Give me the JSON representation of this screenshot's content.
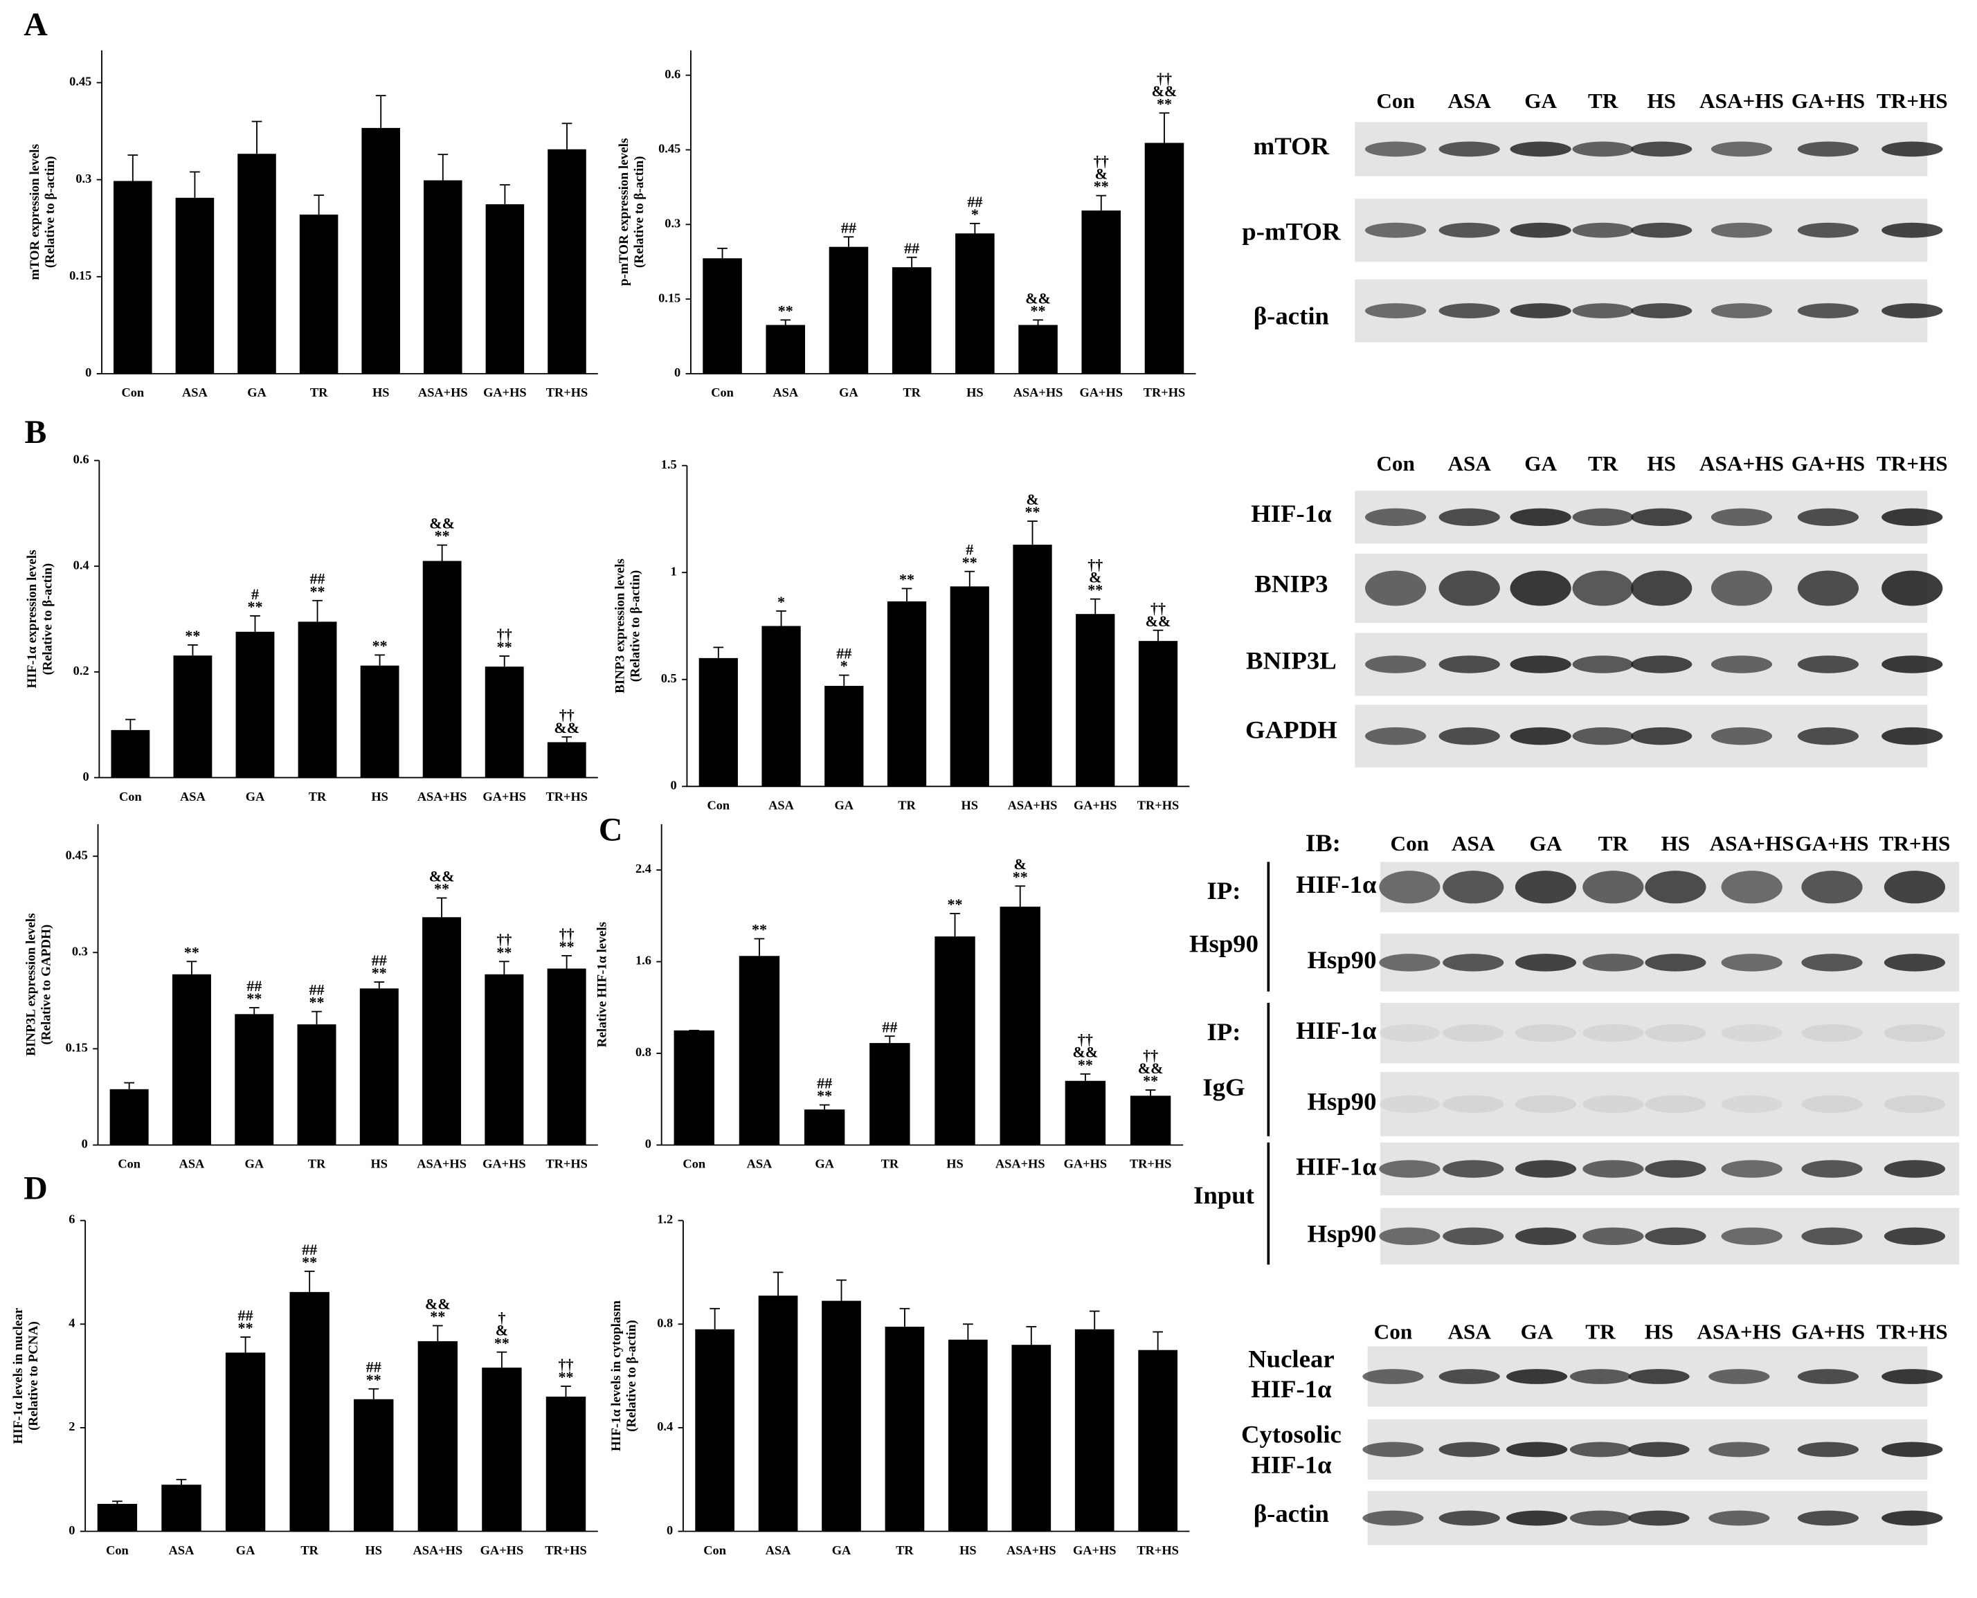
{
  "panel_labels": [
    "A",
    "B",
    "C",
    "D"
  ],
  "chart_data": [
    {
      "type": "bar",
      "ylabel": [
        "mTOR expression levels",
        "(Relative to β-actin)"
      ],
      "categories": [
        "Con",
        "ASA",
        "GA",
        "TR",
        "HS",
        "ASA+HS",
        "GA+HS",
        "TR+HS"
      ],
      "values": [
        0.298,
        0.272,
        0.34,
        0.246,
        0.38,
        0.299,
        0.262,
        0.347
      ],
      "errors": [
        0.04,
        0.04,
        0.05,
        0.03,
        0.05,
        0.04,
        0.03,
        0.04
      ],
      "annotations": [
        [],
        [],
        [],
        [],
        [],
        [],
        [],
        []
      ],
      "color": "#000000",
      "ylim": [
        0,
        0.5
      ],
      "yticks": [
        0,
        0.15,
        0.3,
        0.45
      ]
    },
    {
      "type": "bar",
      "ylabel": [
        "p-mTOR expression levels",
        "(Relative to β-actin)"
      ],
      "categories": [
        "Con",
        "ASA",
        "GA",
        "TR",
        "HS",
        "ASA+HS",
        "GA+HS",
        "TR+HS"
      ],
      "values": [
        0.232,
        0.098,
        0.255,
        0.214,
        0.282,
        0.098,
        0.328,
        0.464
      ],
      "errors": [
        0.02,
        0.01,
        0.02,
        0.02,
        0.02,
        0.01,
        0.03,
        0.06
      ],
      "annotations": [
        [],
        [
          "**"
        ],
        [
          "##"
        ],
        [
          "##"
        ],
        [
          "##",
          "*"
        ],
        [
          "&&",
          "**"
        ],
        [
          "††",
          "&",
          "**"
        ],
        [
          "††",
          "&&",
          "**"
        ]
      ],
      "color": "#000000",
      "ylim": [
        0,
        0.65
      ],
      "yticks": [
        0,
        0.15,
        0.3,
        0.45,
        0.6
      ]
    },
    {
      "type": "bar",
      "ylabel": [
        "HIF-1α expression levels",
        "(Relative to β-actin)"
      ],
      "categories": [
        "Con",
        "ASA",
        "GA",
        "TR",
        "HS",
        "ASA+HS",
        "GA+HS",
        "TR+HS"
      ],
      "values": [
        0.09,
        0.231,
        0.276,
        0.295,
        0.212,
        0.41,
        0.21,
        0.067
      ],
      "errors": [
        0.02,
        0.02,
        0.03,
        0.04,
        0.02,
        0.03,
        0.02,
        0.01
      ],
      "annotations": [
        [],
        [
          "**"
        ],
        [
          "#",
          "**"
        ],
        [
          "##",
          "**"
        ],
        [
          "**"
        ],
        [
          "&&",
          "**"
        ],
        [
          "††",
          "**"
        ],
        [
          "††",
          "&&"
        ]
      ],
      "color": "#000000",
      "ylim": [
        0,
        0.6
      ],
      "yticks": [
        0,
        0.2,
        0.4,
        0.6
      ]
    },
    {
      "type": "bar",
      "ylabel": [
        "BINP3 expression levels",
        "(Relative to β-actin)"
      ],
      "categories": [
        "Con",
        "ASA",
        "GA",
        "TR",
        "HS",
        "ASA+HS",
        "GA+HS",
        "TR+HS"
      ],
      "values": [
        0.6,
        0.75,
        0.47,
        0.865,
        0.935,
        1.13,
        0.806,
        0.68
      ],
      "errors": [
        0.05,
        0.07,
        0.05,
        0.06,
        0.07,
        0.11,
        0.07,
        0.05
      ],
      "annotations": [
        [],
        [
          "*"
        ],
        [
          "##",
          "*"
        ],
        [
          "**"
        ],
        [
          "#",
          "**"
        ],
        [
          "&",
          "**"
        ],
        [
          "††",
          "&",
          "**"
        ],
        [
          "††",
          "&&"
        ]
      ],
      "color": "#000000",
      "ylim": [
        0,
        1.5
      ],
      "yticks": [
        0,
        0.5,
        1,
        1.5
      ]
    },
    {
      "type": "bar",
      "ylabel": [
        "BINP3L expression levels",
        "(Relative to GAPDH)"
      ],
      "categories": [
        "Con",
        "ASA",
        "GA",
        "TR",
        "HS",
        "ASA+HS",
        "GA+HS",
        "TR+HS"
      ],
      "values": [
        0.087,
        0.266,
        0.204,
        0.188,
        0.244,
        0.355,
        0.266,
        0.275
      ],
      "errors": [
        0.01,
        0.02,
        0.01,
        0.02,
        0.01,
        0.03,
        0.02,
        0.02
      ],
      "annotations": [
        [],
        [
          "**"
        ],
        [
          "##",
          "**"
        ],
        [
          "##",
          "**"
        ],
        [
          "##",
          "**"
        ],
        [
          "&&",
          "**"
        ],
        [
          "††",
          "**"
        ],
        [
          "††",
          "**"
        ]
      ],
      "color": "#000000",
      "ylim": [
        0,
        0.5
      ],
      "yticks": [
        0,
        0.15,
        0.3,
        0.45
      ]
    },
    {
      "type": "bar",
      "ylabel": [
        "Relative HIF-1α levels"
      ],
      "categories": [
        "Con",
        "ASA",
        "GA",
        "TR",
        "HS",
        "ASA+HS",
        "GA+HS",
        "TR+HS"
      ],
      "values": [
        1.0,
        1.65,
        0.31,
        0.89,
        1.82,
        2.08,
        0.56,
        0.43
      ],
      "errors": [
        0,
        0.15,
        0.04,
        0.06,
        0.2,
        0.18,
        0.06,
        0.05
      ],
      "annotations": [
        [],
        [
          "**"
        ],
        [
          "##",
          "**"
        ],
        [
          "##"
        ],
        [
          "**"
        ],
        [
          "&",
          "**"
        ],
        [
          "††",
          "&&",
          "**"
        ],
        [
          "††",
          "&&",
          "**"
        ]
      ],
      "color": "#000000",
      "ylim": [
        0,
        2.8
      ],
      "yticks": [
        0,
        0.8,
        1.6,
        2.4
      ]
    },
    {
      "type": "bar",
      "ylabel": [
        "HIF-1α levels in nuclear",
        "(Relative to PCNA)"
      ],
      "categories": [
        "Con",
        "ASA",
        "GA",
        "TR",
        "HS",
        "ASA+HS",
        "GA+HS",
        "TR+HS"
      ],
      "values": [
        0.53,
        0.9,
        3.45,
        4.62,
        2.55,
        3.67,
        3.16,
        2.6
      ],
      "errors": [
        0.05,
        0.1,
        0.3,
        0.4,
        0.2,
        0.3,
        0.3,
        0.2
      ],
      "annotations": [
        [],
        [],
        [
          "##",
          "**"
        ],
        [
          "##",
          "**"
        ],
        [
          "##",
          "**"
        ],
        [
          "&&",
          "**"
        ],
        [
          "†",
          "&",
          "**"
        ],
        [
          "††",
          "**"
        ]
      ],
      "color": "#000000",
      "ylim": [
        0,
        6
      ],
      "yticks": [
        0,
        2,
        4,
        6
      ]
    },
    {
      "type": "bar",
      "ylabel": [
        "HIF-1α levels in cytoplasm",
        "(Relative to β-actin)"
      ],
      "categories": [
        "Con",
        "ASA",
        "GA",
        "TR",
        "HS",
        "ASA+HS",
        "GA+HS",
        "TR+HS"
      ],
      "values": [
        0.78,
        0.91,
        0.89,
        0.79,
        0.74,
        0.72,
        0.78,
        0.7
      ],
      "errors": [
        0.08,
        0.09,
        0.08,
        0.07,
        0.06,
        0.07,
        0.07,
        0.07
      ],
      "annotations": [
        [],
        [],
        [],
        [],
        [],
        [],
        [],
        []
      ],
      "color": "#000000",
      "ylim": [
        0,
        1.2
      ],
      "yticks": [
        0,
        0.4,
        0.8,
        1.2
      ]
    }
  ],
  "blots": [
    {
      "lanes": [
        "Con",
        "ASA",
        "GA",
        "TR",
        "HS",
        "ASA+HS",
        "GA+HS",
        "TR+HS"
      ],
      "rows": [
        [
          "mTOR"
        ],
        [
          "p-mTOR"
        ],
        [
          "β-actin"
        ]
      ]
    },
    {
      "lanes": [
        "Con",
        "ASA",
        "GA",
        "TR",
        "HS",
        "ASA+HS",
        "GA+HS",
        "TR+HS"
      ],
      "rows": [
        [
          "HIF-1α"
        ],
        [
          "BNIP3"
        ],
        [
          "BNIP3L"
        ],
        [
          "GAPDH"
        ]
      ]
    },
    {
      "header": "IB:",
      "lanes": [
        "Con",
        "ASA",
        "GA",
        "TR",
        "HS",
        "ASA+HS",
        "GA+HS",
        "TR+HS"
      ],
      "groups": [
        {
          "label": [
            "IP:",
            "Hsp90"
          ],
          "rows": [
            "HIF-1α",
            "Hsp90"
          ]
        },
        {
          "label": [
            "IP:",
            "IgG"
          ],
          "rows": [
            "HIF-1α",
            "Hsp90"
          ]
        },
        {
          "label": [
            "Input"
          ],
          "rows": [
            "HIF-1α",
            "Hsp90"
          ]
        }
      ]
    },
    {
      "lanes": [
        "Con",
        "ASA",
        "GA",
        "TR",
        "HS",
        "ASA+HS",
        "GA+HS",
        "TR+HS"
      ],
      "rows": [
        [
          "Nuclear",
          "HIF-1α"
        ],
        [
          "Cytosolic",
          "HIF-1α"
        ],
        [
          "β-actin"
        ]
      ]
    }
  ]
}
